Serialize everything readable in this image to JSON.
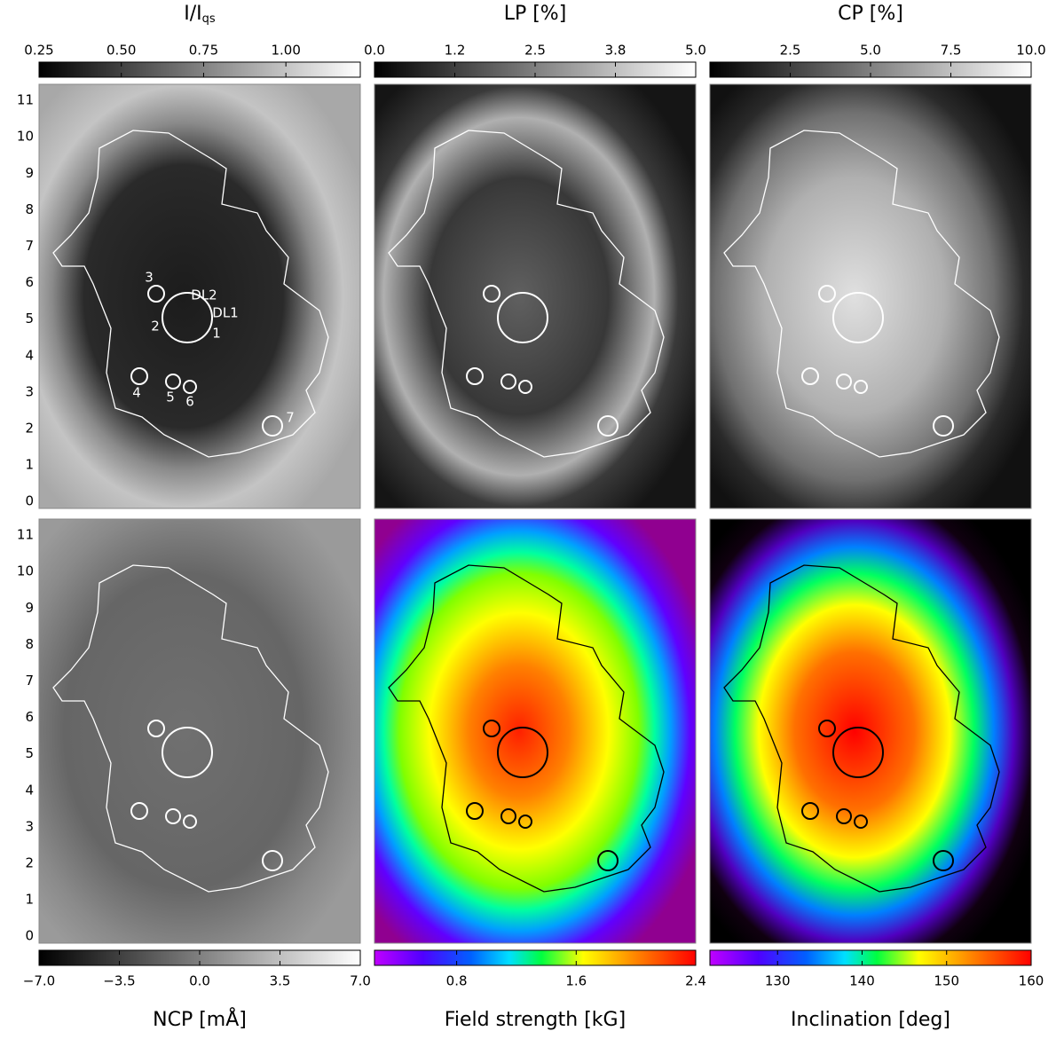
{
  "y_axis": {
    "ylim": [
      -0.19,
      11.44
    ],
    "ticks": [
      0,
      1,
      2,
      3,
      4,
      5,
      6,
      7,
      8,
      9,
      10,
      11
    ]
  },
  "panels": [
    {
      "title": "I/I",
      "title_subscript": "qs",
      "colormap": "gray",
      "contour_color": "#ffffff",
      "clim": [
        0.25,
        1.226
      ],
      "ticks": [
        0.25,
        {
          "value": 0.5,
          "label": "0.50"
        },
        0.75,
        {
          "value": 1,
          "label": "1.00"
        }
      ]
    },
    {
      "title": "LP [%]",
      "colormap": "gray",
      "contour_color": "#ffffff",
      "clim": [
        0,
        5
      ],
      "ticks": [
        {
          "value": 0,
          "label": "0.0"
        },
        {
          "value": 1.25,
          "label": "1.2"
        },
        2.5,
        {
          "value": 3.75,
          "label": "3.8"
        },
        {
          "value": 5,
          "label": "5.0"
        }
      ]
    },
    {
      "title": "CP [%]",
      "colormap": "gray",
      "contour_color": "#ffffff",
      "clim": [
        0,
        10
      ],
      "ticks": [
        2.5,
        {
          "value": 5,
          "label": "5.0"
        },
        7.5,
        {
          "value": 10,
          "label": "10.0"
        }
      ]
    },
    {
      "title": "NCP [mÅ]",
      "colormap": "gray",
      "contour_color": "#ffffff",
      "clim": [
        -7,
        7
      ],
      "ticks": [
        {
          "value": -7,
          "label": "−7.0"
        },
        {
          "value": -3.5,
          "label": "−3.5"
        },
        {
          "value": 0,
          "label": "0.0"
        },
        3.5,
        {
          "value": 7,
          "label": "7.0"
        }
      ]
    },
    {
      "title": "Field strength [kG]",
      "colormap": "rainbow",
      "contour_color": "#000000",
      "clim": [
        0.25,
        2.4
      ],
      "ticks": [
        0.8,
        1.6,
        2.4
      ]
    },
    {
      "title": "Inclination [deg]",
      "colormap": "rainbow",
      "contour_color": "#000000",
      "clim": [
        122,
        160
      ],
      "ticks": [
        130,
        140,
        150,
        160
      ]
    }
  ],
  "annotations": [
    "3",
    "DL2",
    "DL1",
    "2",
    "1",
    "4",
    "5",
    "6",
    "7"
  ]
}
